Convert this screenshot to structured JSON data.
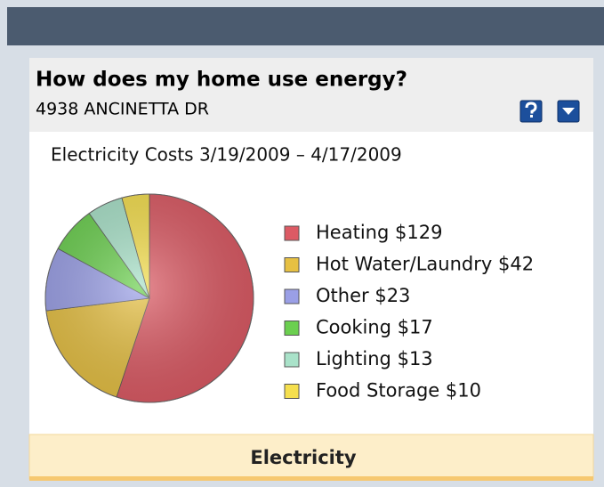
{
  "header": {
    "title": "How does my home use energy?",
    "address": "4938 ANCINETTA DR"
  },
  "chart_data": {
    "type": "pie",
    "title": "Electricity Costs 3/19/2009 – 4/17/2009",
    "categories": [
      "Heating",
      "Hot Water/Laundry",
      "Other",
      "Cooking",
      "Lighting",
      "Food Storage"
    ],
    "values": [
      129,
      42,
      23,
      17,
      13,
      10
    ],
    "value_labels": [
      "$129",
      "$42",
      "$23",
      "$17",
      "$13",
      "$10"
    ],
    "colors": [
      "#dc5a64",
      "#e6c043",
      "#9a9fe6",
      "#6bcf4f",
      "#a9e2c9",
      "#f5df4e"
    ]
  },
  "tab": "Electricity"
}
